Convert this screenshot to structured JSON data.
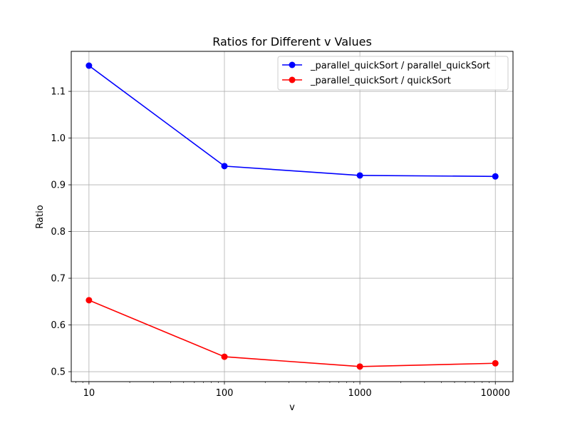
{
  "chart_data": {
    "type": "line",
    "title": "Ratios for Different v Values",
    "xlabel": "v",
    "ylabel": "Ratio",
    "xscale": "log",
    "x": [
      10,
      100,
      1000,
      10000
    ],
    "xticks": [
      "10",
      "100",
      "1000",
      "10000"
    ],
    "xlim": [
      7.4,
      13500
    ],
    "yticks": [
      "0.5",
      "0.6",
      "0.7",
      "0.8",
      "0.9",
      "1.0",
      "1.1"
    ],
    "ylim": [
      0.4787,
      1.1856
    ],
    "grid": true,
    "legend_position": "top-right",
    "series": [
      {
        "name": "_parallel_quickSort / parallel_quickSort",
        "color": "#0000ff",
        "values": [
          1.155,
          0.94,
          0.92,
          0.918
        ]
      },
      {
        "name": "_parallel_quickSort / quickSort",
        "color": "#ff0000",
        "values": [
          0.653,
          0.532,
          0.511,
          0.518
        ]
      }
    ]
  }
}
